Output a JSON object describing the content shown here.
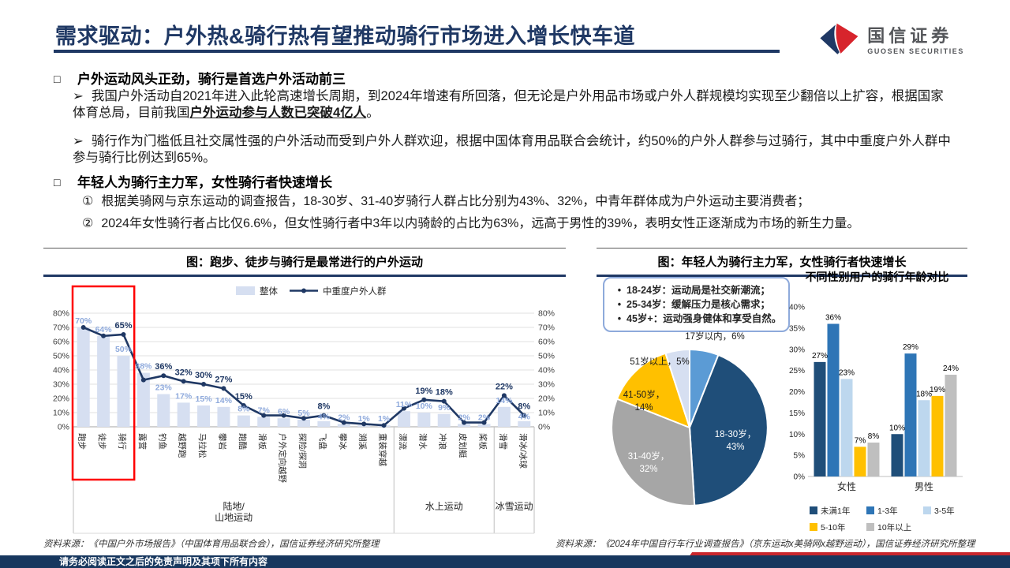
{
  "header": {
    "title": "需求驱动：户外热&骑行热有望推动骑行市场进入增长快车道",
    "brand_cn": "国信证券",
    "brand_en": "GUOSEN SECURITIES"
  },
  "markers": {
    "square": "□",
    "arrow": "➢",
    "num1": "①",
    "num2": "②",
    "dot": "•"
  },
  "body": {
    "s1_title": "户外运动风头正劲，骑行是首选户外活动前三",
    "s1_p1_pre": "我国户外活动自2021年进入此轮高速增长周期，到2024年增速有所回落，但无论是户外用品市场或户外人群规模均实现至少翻倍以上扩容，根据国家体育总局，目前我国",
    "s1_p1_strong": "户外运动参与人数已突破4亿人",
    "s1_p1_post": "。",
    "s1_p2": "骑行作为门槛低且社交属性强的户外活动而受到户外人群欢迎，根据中国体育用品联合会统计，约50%的户外人群参与过骑行，其中中重度户外人群中参与骑行比例达到65%。",
    "s2_title": "年轻人为骑行主力军，女性骑行者快速增长",
    "s2_i1": "根据美骑网与京东运动的调查报告，18-30岁、31-40岁骑行人群占比分别为43%、32%，中青年群体成为户外运动主要消费者；",
    "s2_i2": "2024年女性骑行者占比仅6.6%，但女性骑行者中3年以内骑龄的占比为63%，远高于男性的39%，表明女性正逐渐成为市场的新生力量。"
  },
  "panels": {
    "left": {
      "title": "图：跑步、徒步与骑行是最常进行的户外运动",
      "source": "资料来源：《中国户外市场报告》（中国体育用品联合会），国信证券经济研究所整理"
    },
    "right": {
      "title": "图：年轻人为骑行主力军，女性骑行者快速增长",
      "callout": [
        "18-24岁：运动局是社交新潮流；",
        "25-34岁：缓解压力是核心需求；",
        "45岁+：运动强身健体和享受自然。"
      ],
      "bar_subtitle": "不同性别用户的骑行年龄对比",
      "source": "资料来源：《2024年中国自行车行业调查报告》（京东运动x美骑网x越野运动），国信证券经济研究所整理"
    }
  },
  "footer": {
    "disclaimer": "请务必阅读正文之后的免责声明及其项下所有内容"
  },
  "chart_data": [
    {
      "type": "bar",
      "subtype": "bar+line combo",
      "title": "图：跑步、徒步与骑行是最常进行的户外运动",
      "categories": [
        "跑步",
        "徒步",
        "骑行",
        "露营",
        "钓鱼",
        "越野跑",
        "马拉松",
        "攀岩",
        "跑酷",
        "滑板",
        "户外定向越野",
        "探险/探洞",
        "飞盘",
        "攀冰",
        "溯溪",
        "重装穿越",
        "漂流",
        "潜水",
        "冲浪",
        "皮划艇",
        "桨板",
        "滑雪",
        "滑冰/冰球"
      ],
      "series": [
        {
          "name": "整体",
          "type": "bar",
          "color": "#D6DFF1",
          "label_color": "#8FAADC",
          "values": [
            70,
            64,
            50,
            38,
            23,
            17,
            15,
            14,
            8,
            7,
            6,
            5,
            4,
            2,
            1,
            1,
            11,
            10,
            9,
            2,
            2,
            14,
            4
          ]
        },
        {
          "name": "中重度户外人群",
          "type": "line",
          "color": "#1F3864",
          "label_color": "#1F3864",
          "values": [
            70,
            64,
            65,
            33,
            36,
            32,
            30,
            27,
            15,
            8,
            8,
            6,
            8,
            3,
            2,
            1,
            13,
            19,
            18,
            3,
            3,
            22,
            8
          ],
          "labels_shown": [
            false,
            false,
            true,
            false,
            true,
            true,
            true,
            true,
            true,
            false,
            false,
            false,
            true,
            false,
            false,
            false,
            false,
            true,
            true,
            false,
            false,
            true,
            true
          ]
        }
      ],
      "groups": [
        {
          "label": "陆地/山地运动",
          "from": 0,
          "to": 15
        },
        {
          "label": "水上运动",
          "from": 16,
          "to": 20
        },
        {
          "label": "冰雪运动",
          "from": 21,
          "to": 22
        }
      ],
      "ylim": [
        0,
        80
      ],
      "ytick_step": 10,
      "dual_axis": true,
      "grid": true,
      "highlight_box": {
        "color": "#FF0000",
        "from_category": 0,
        "to_category": 2
      }
    },
    {
      "type": "pie",
      "labels": [
        "17岁以内",
        "18-30岁",
        "31-40岁",
        "41-50岁",
        "51岁以上"
      ],
      "values": [
        6,
        43,
        32,
        14,
        5
      ],
      "colors": [
        "#5B9BD5",
        "#1F4E79",
        "#A6A6A6",
        "#FFC000",
        "#D6DFF1"
      ],
      "start": "top",
      "direction": "clockwise"
    },
    {
      "type": "bar",
      "title": "不同性别用户的骑行年龄对比",
      "categories": [
        "女性",
        "男性"
      ],
      "series": [
        {
          "name": "未满1年",
          "color": "#1F4E79",
          "values": [
            27,
            10
          ]
        },
        {
          "name": "1-3年",
          "color": "#2E75B6",
          "values": [
            36,
            29
          ]
        },
        {
          "name": "3-5年",
          "color": "#BDD7EE",
          "values": [
            23,
            18
          ]
        },
        {
          "name": "5-10年",
          "color": "#FFC000",
          "values": [
            7,
            19
          ]
        },
        {
          "name": "10年以上",
          "color": "#BFBFBF",
          "values": [
            8,
            24
          ]
        }
      ],
      "ylim": [
        0,
        40
      ],
      "ytick_step": 5,
      "grid": false,
      "legend_position": "bottom"
    }
  ]
}
